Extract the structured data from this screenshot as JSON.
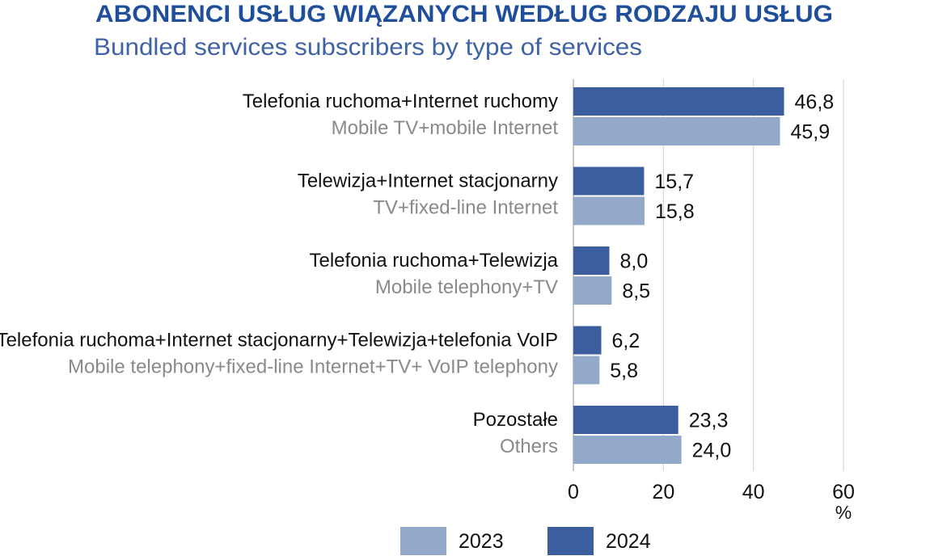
{
  "chart_data": {
    "type": "bar",
    "orientation": "horizontal",
    "title": "ABONENCI USŁUG WIĄZANYCH WEDŁUG RODZAJU USŁUG",
    "subtitle": "Bundled services subscribers by type of services",
    "categories": [
      {
        "pl": "Telefonia ruchoma+Internet ruchomy",
        "en": "Mobile TV+mobile Internet"
      },
      {
        "pl": "Telewizja+Internet stacjonarny",
        "en": "TV+fixed-line Internet"
      },
      {
        "pl": "Telefonia ruchoma+Telewizja",
        "en": "Mobile telephony+TV"
      },
      {
        "pl": "Telefonia ruchoma+Internet stacjonarny+Telewizja+telefonia VoIP",
        "en": "Mobile telephony+fixed-line Internet+TV+ VoIP telephony"
      },
      {
        "pl": "Pozostałe",
        "en": "Others"
      }
    ],
    "series": [
      {
        "name": "2024",
        "color": "#3d5e9e",
        "values": [
          46.8,
          15.7,
          8.0,
          6.2,
          23.3
        ],
        "labels": [
          "46,8",
          "15,7",
          "8,0",
          "6,2",
          "23,3"
        ]
      },
      {
        "name": "2023",
        "color": "#93a9c9",
        "values": [
          45.9,
          15.8,
          8.5,
          5.8,
          24.0
        ],
        "labels": [
          "45,9",
          "15,8",
          "8,5",
          "5,8",
          "24,0"
        ]
      }
    ],
    "xlim": [
      0,
      60
    ],
    "xticks": [
      0,
      20,
      40,
      60
    ],
    "xtick_labels": [
      "0",
      "20",
      "40",
      "60"
    ],
    "unit": "%",
    "grid": true,
    "legend": {
      "position": "bottom",
      "items": [
        {
          "label": "2023",
          "color": "#93a9c9"
        },
        {
          "label": "2024",
          "color": "#3d5e9e"
        }
      ]
    }
  }
}
